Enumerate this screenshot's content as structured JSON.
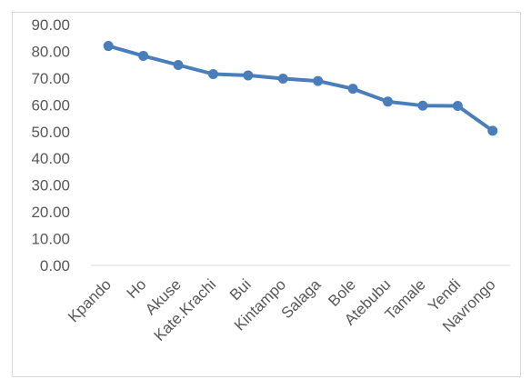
{
  "chart_data": {
    "type": "line",
    "title": "",
    "xlabel": "",
    "ylabel": "",
    "categories": [
      "Kpando",
      "Ho",
      "Akuse",
      "Kate.Krachi",
      "Bui",
      "Kintampo",
      "Salaga",
      "Bole",
      "Atebubu",
      "Tamale",
      "Yendi",
      "Navrongo"
    ],
    "series": [
      {
        "values": [
          82.0,
          78.3,
          74.9,
          71.5,
          71.0,
          69.8,
          68.9,
          66.0,
          61.2,
          59.7,
          59.6,
          50.3
        ]
      }
    ],
    "ylim": [
      0,
      90
    ],
    "yticks": [
      "0.00",
      "10.00",
      "20.00",
      "30.00",
      "40.00",
      "50.00",
      "60.00",
      "70.00",
      "80.00",
      "90.00"
    ],
    "grid": "none",
    "legend": "none",
    "colors": {
      "line": "#4a7ebb",
      "axis": "#d9d9d9",
      "text": "#595959"
    }
  }
}
